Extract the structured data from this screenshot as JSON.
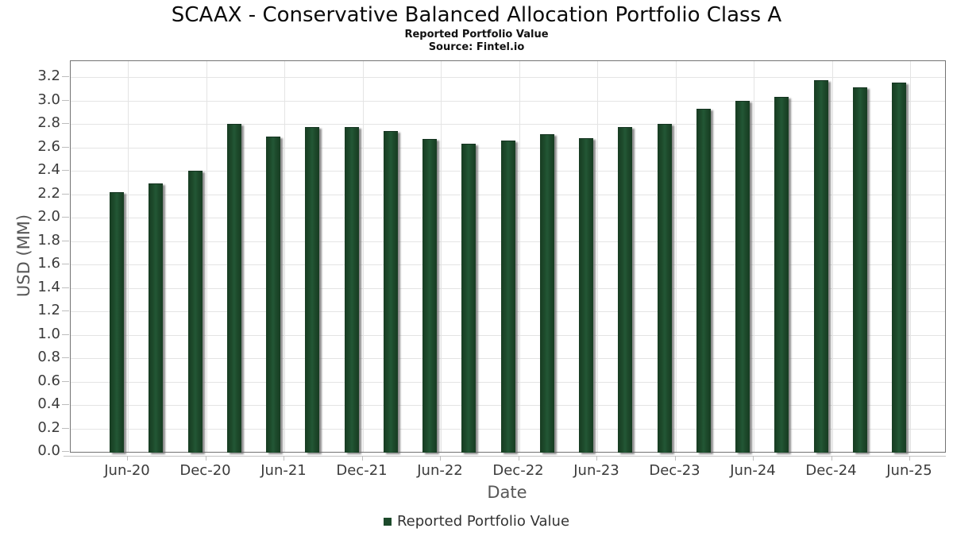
{
  "header": {
    "title": "SCAAX - Conservative Balanced Allocation Portfolio Class A",
    "subtitle": "Reported Portfolio Value",
    "source": "Source: Fintel.io"
  },
  "legend": {
    "label": "Reported Portfolio Value",
    "marker_color": "#1d4a2b"
  },
  "chart_data": {
    "type": "bar",
    "title": "SCAAX - Conservative Balanced Allocation Portfolio Class A",
    "subtitle": "Reported Portfolio Value",
    "source": "Source: Fintel.io",
    "xlabel": "Date",
    "ylabel": "USD (MM)",
    "ylim": [
      0.0,
      3.2
    ],
    "ytick_step": 0.2,
    "grid": true,
    "legend_position": "bottom",
    "bar_color": "#1d4a2b",
    "gridline_color": "#e4e4e4",
    "categories": [
      "Jun-20",
      "Sep-20",
      "Dec-20",
      "Mar-21",
      "Jun-21",
      "Sep-21",
      "Dec-21",
      "Mar-22",
      "Jun-22",
      "Sep-22",
      "Dec-22",
      "Mar-23",
      "Jun-23",
      "Sep-23",
      "Dec-23",
      "Mar-24",
      "Jun-24",
      "Sep-24",
      "Dec-24",
      "Mar-25",
      "Jun-25"
    ],
    "x_tick_labels": [
      "Jun-20",
      "Dec-20",
      "Jun-21",
      "Dec-21",
      "Jun-22",
      "Dec-22",
      "Jun-23",
      "Dec-23",
      "Jun-24",
      "Dec-24",
      "Jun-25"
    ],
    "series": [
      {
        "name": "Reported Portfolio Value",
        "values": [
          2.22,
          2.29,
          2.4,
          2.8,
          2.69,
          2.77,
          2.77,
          2.74,
          2.67,
          2.63,
          2.66,
          2.71,
          2.68,
          2.77,
          2.8,
          2.93,
          3.0,
          3.03,
          3.17,
          3.11,
          3.15
        ]
      }
    ]
  }
}
